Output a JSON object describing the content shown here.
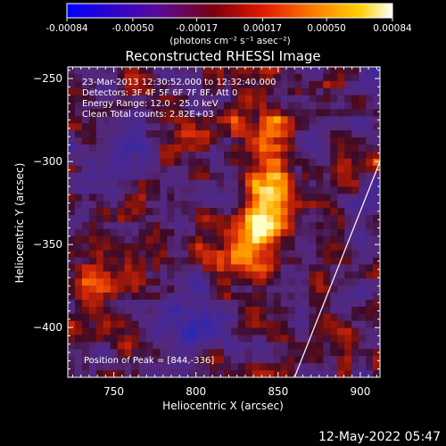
{
  "colorbar": {
    "tick_labels": [
      "-0.00084",
      "-0.00050",
      "-0.00017",
      "0.00017",
      "0.00050",
      "0.00084"
    ],
    "tick_values": [
      -0.00084,
      -0.0005,
      -0.00017,
      0.00017,
      0.0005,
      0.00084
    ],
    "range": [
      -0.00084,
      0.00084
    ],
    "unit_label": "(photons cm⁻² s⁻¹ asec⁻²)",
    "colors": [
      "#0000ff",
      "#4b0082",
      "#8b0000",
      "#ff4500",
      "#ffa500",
      "#ffffff"
    ]
  },
  "chart_data": {
    "type": "heatmap",
    "title": "Reconstructed RHESSI Image",
    "xlabel": "Heliocentric X (arcsec)",
    "ylabel": "Heliocentric Y (arcsec)",
    "xlim": [
      722,
      912
    ],
    "ylim": [
      -430,
      -243
    ],
    "x_ticks": [
      750,
      800,
      850,
      900
    ],
    "y_ticks": [
      -250,
      -300,
      -350,
      -400
    ],
    "x_tick_labels": [
      "750",
      "800",
      "850",
      "900"
    ],
    "y_tick_labels": [
      "−250",
      "−300",
      "−350",
      "−400"
    ],
    "annotations": {
      "time": "23-Mar-2013 12:30:52.000 to 12:32:40.000",
      "detectors": "Detectors: 3F 4F 5F 6F 7F 8F, Att 0",
      "energy": "Energy Range: 12.0 - 25.0 keV",
      "clean": "Clean    Total counts: 2.82E+03",
      "peak": "Position of Peak = [844,-336]"
    },
    "peak": {
      "x": 844,
      "y": -336
    },
    "limb_line": [
      {
        "x": 860,
        "y": -430
      },
      {
        "x": 912,
        "y": -300
      }
    ]
  },
  "footer": {
    "date": "12-May-2022 05:47"
  }
}
